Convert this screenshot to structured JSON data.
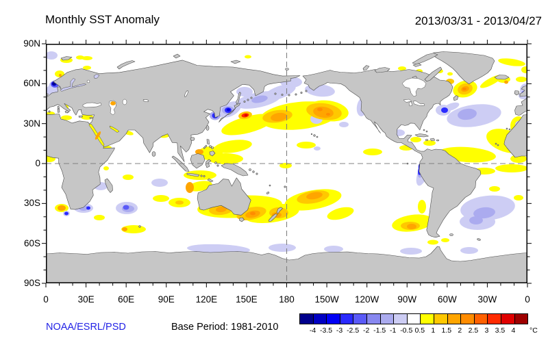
{
  "header": {
    "title": "Monthly SST Anomaly",
    "date_range": "2013/03/31 - 2013/04/27"
  },
  "footer": {
    "credit": "NOAA/ESRL/PSD",
    "credit_color": "#2222E6",
    "base_period": "Base Period: 1981-2010"
  },
  "axes": {
    "y_labels": [
      "90N",
      "60N",
      "30N",
      "0",
      "30S",
      "60S",
      "90S"
    ],
    "x_labels": [
      "0",
      "30E",
      "60E",
      "90E",
      "120E",
      "150E",
      "180",
      "150W",
      "120W",
      "90W",
      "60W",
      "30W",
      "0"
    ]
  },
  "colorbar": {
    "unit": "°C",
    "tick_labels": [
      "-4",
      "-3.5",
      "-3",
      "-2.5",
      "-2",
      "-1.5",
      "-1",
      "-0.5",
      "0.5",
      "1",
      "1.5",
      "2",
      "2.5",
      "3",
      "3.5",
      "4"
    ],
    "colors": [
      "#00008C",
      "#0000C3",
      "#0000F5",
      "#2A2AFF",
      "#5A5AF8",
      "#8888F0",
      "#ABABEF",
      "#CDCDF4",
      "#FFFFFF",
      "#FFFF00",
      "#FFC800",
      "#FFA500",
      "#FF8C00",
      "#FF6000",
      "#FF2A00",
      "#E00000",
      "#9E0000"
    ]
  },
  "map": {
    "land_color": "#C6C6C6",
    "coast_color": "#4A4A4A",
    "ocean_color": "#FFFFFF",
    "gridline_color": "#808080"
  }
}
